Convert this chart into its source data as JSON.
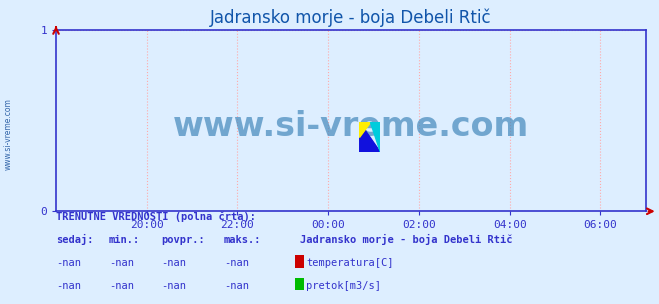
{
  "title": "Jadransko morje - boja Debeli Rtič",
  "background_color": "#ddeeff",
  "plot_bg_color": "#ddeeff",
  "ylim": [
    0,
    1
  ],
  "yticks": [
    0,
    1
  ],
  "xtick_labels": [
    "20:00",
    "22:00",
    "00:00",
    "02:00",
    "04:00",
    "06:00"
  ],
  "grid_color": "#ffaaaa",
  "grid_linestyle": ":",
  "spine_color": "#3333cc",
  "arrow_color": "#cc0000",
  "watermark_text": "www.si-vreme.com",
  "watermark_color": "#4488bb",
  "watermark_alpha": 0.7,
  "watermark_fontsize": 24,
  "left_label": "www.si-vreme.com",
  "left_label_color": "#3366aa",
  "title_color": "#1155aa",
  "title_fontsize": 12,
  "tick_color": "#3333cc",
  "tick_fontsize": 8,
  "legend_title": "TRENUTNE VREDNOSTI (polna črta):",
  "legend_title_color": "#3333cc",
  "legend_title_fontsize": 7.5,
  "col_headers": [
    "sedaj:",
    "min.:",
    "povpr.:",
    "maks.:"
  ],
  "col_header_color": "#3333cc",
  "col_values": [
    "-nan",
    "-nan",
    "-nan",
    "-nan"
  ],
  "col_value_color": "#3333cc",
  "series_label": "Jadransko morje - boja Debeli Rtič",
  "series_label_color": "#3333cc",
  "series_label_fontsize": 7.5,
  "legend_items": [
    {
      "label": "temperatura[C]",
      "color": "#cc0000"
    },
    {
      "label": "pretok[m3/s]",
      "color": "#00bb00"
    }
  ],
  "legend_fontsize": 7.5
}
